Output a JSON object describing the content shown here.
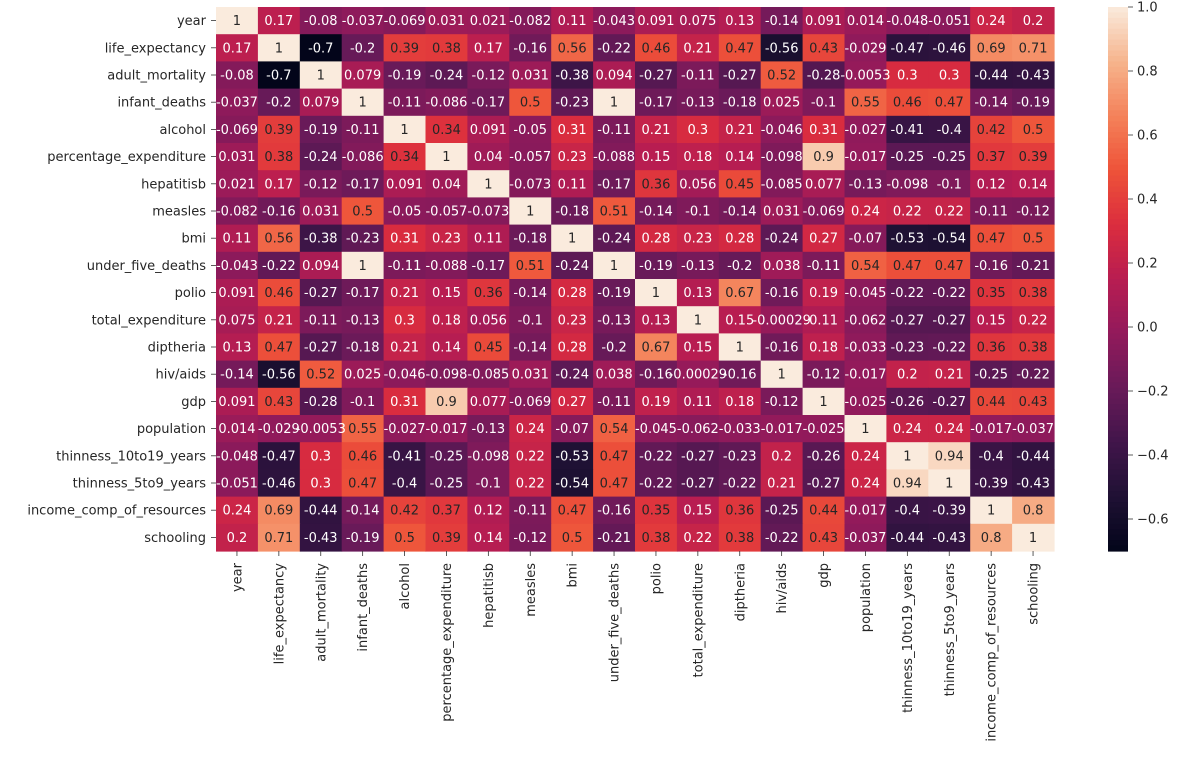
{
  "chart_data": {
    "type": "heatmap",
    "labels": [
      "year",
      "life_expectancy",
      "adult_mortality",
      "infant_deaths",
      "alcohol",
      "percentage_expenditure",
      "hepatitisb",
      "measles",
      "bmi",
      "under_five_deaths",
      "polio",
      "total_expenditure",
      "diptheria",
      "hiv/aids",
      "gdp",
      "population",
      "thinness_10to19_years",
      "thinness_5to9_years",
      "income_comp_of_resources",
      "schooling"
    ],
    "cells": [
      [
        "1",
        "0.17",
        "-0.08",
        "-0.037",
        "-0.069",
        "0.031",
        "0.021",
        "-0.082",
        "0.11",
        "-0.043",
        "0.091",
        "0.075",
        "0.13",
        "-0.14",
        "0.091",
        "0.014",
        "-0.048",
        "-0.051",
        "0.24",
        "0.2"
      ],
      [
        "0.17",
        "1",
        "-0.7",
        "-0.2",
        "0.39",
        "0.38",
        "0.17",
        "-0.16",
        "0.56",
        "-0.22",
        "0.46",
        "0.21",
        "0.47",
        "-0.56",
        "0.43",
        "-0.029",
        "-0.47",
        "-0.46",
        "0.69",
        "0.71"
      ],
      [
        "-0.08",
        "-0.7",
        "1",
        "0.079",
        "-0.19",
        "-0.24",
        "-0.12",
        "0.031",
        "-0.38",
        "0.094",
        "-0.27",
        "-0.11",
        "-0.27",
        "0.52",
        "-0.28",
        "-0.0053",
        "0.3",
        "0.3",
        "-0.44",
        "-0.43"
      ],
      [
        "-0.037",
        "-0.2",
        "0.079",
        "1",
        "-0.11",
        "-0.086",
        "-0.17",
        "0.5",
        "-0.23",
        "1",
        "-0.17",
        "-0.13",
        "-0.18",
        "0.025",
        "-0.1",
        "0.55",
        "0.46",
        "0.47",
        "-0.14",
        "-0.19"
      ],
      [
        "-0.069",
        "0.39",
        "-0.19",
        "-0.11",
        "1",
        "0.34",
        "0.091",
        "-0.05",
        "0.31",
        "-0.11",
        "0.21",
        "0.3",
        "0.21",
        "-0.046",
        "0.31",
        "-0.027",
        "-0.41",
        "-0.4",
        "0.42",
        "0.5"
      ],
      [
        "0.031",
        "0.38",
        "-0.24",
        "-0.086",
        "0.34",
        "1",
        "0.04",
        "-0.057",
        "0.23",
        "-0.088",
        "0.15",
        "0.18",
        "0.14",
        "-0.098",
        "0.9",
        "-0.017",
        "-0.25",
        "-0.25",
        "0.37",
        "0.39"
      ],
      [
        "0.021",
        "0.17",
        "-0.12",
        "-0.17",
        "0.091",
        "0.04",
        "1",
        "-0.073",
        "0.11",
        "-0.17",
        "0.36",
        "0.056",
        "0.45",
        "-0.085",
        "0.077",
        "-0.13",
        "-0.098",
        "-0.1",
        "0.12",
        "0.14"
      ],
      [
        "-0.082",
        "-0.16",
        "0.031",
        "0.5",
        "-0.05",
        "-0.057",
        "-0.073",
        "1",
        "-0.18",
        "0.51",
        "-0.14",
        "-0.1",
        "-0.14",
        "0.031",
        "-0.069",
        "0.24",
        "0.22",
        "0.22",
        "-0.11",
        "-0.12"
      ],
      [
        "0.11",
        "0.56",
        "-0.38",
        "-0.23",
        "0.31",
        "0.23",
        "0.11",
        "-0.18",
        "1",
        "-0.24",
        "0.28",
        "0.23",
        "0.28",
        "-0.24",
        "0.27",
        "-0.07",
        "-0.53",
        "-0.54",
        "0.47",
        "0.5"
      ],
      [
        "-0.043",
        "-0.22",
        "0.094",
        "1",
        "-0.11",
        "-0.088",
        "-0.17",
        "0.51",
        "-0.24",
        "1",
        "-0.19",
        "-0.13",
        "-0.2",
        "0.038",
        "-0.11",
        "0.54",
        "0.47",
        "0.47",
        "-0.16",
        "-0.21"
      ],
      [
        "0.091",
        "0.46",
        "-0.27",
        "-0.17",
        "0.21",
        "0.15",
        "0.36",
        "-0.14",
        "0.28",
        "-0.19",
        "1",
        "0.13",
        "0.67",
        "-0.16",
        "0.19",
        "-0.045",
        "-0.22",
        "-0.22",
        "0.35",
        "0.38"
      ],
      [
        "0.075",
        "0.21",
        "-0.11",
        "-0.13",
        "0.3",
        "0.18",
        "0.056",
        "-0.1",
        "0.23",
        "-0.13",
        "0.13",
        "1",
        "0.15",
        "-0.00029",
        "0.11",
        "-0.062",
        "-0.27",
        "-0.27",
        "0.15",
        "0.22"
      ],
      [
        "0.13",
        "0.47",
        "-0.27",
        "-0.18",
        "0.21",
        "0.14",
        "0.45",
        "-0.14",
        "0.28",
        "-0.2",
        "0.67",
        "0.15",
        "1",
        "-0.16",
        "0.18",
        "-0.033",
        "-0.23",
        "-0.22",
        "0.36",
        "0.38"
      ],
      [
        "-0.14",
        "-0.56",
        "0.52",
        "0.025",
        "-0.046",
        "-0.098",
        "-0.085",
        "0.031",
        "-0.24",
        "0.038",
        "-0.16",
        "-0.00029",
        "-0.16",
        "1",
        "-0.12",
        "-0.017",
        "0.2",
        "0.21",
        "-0.25",
        "-0.22"
      ],
      [
        "0.091",
        "0.43",
        "-0.28",
        "-0.1",
        "0.31",
        "0.9",
        "0.077",
        "-0.069",
        "0.27",
        "-0.11",
        "0.19",
        "0.11",
        "0.18",
        "-0.12",
        "1",
        "-0.025",
        "-0.26",
        "-0.27",
        "0.44",
        "0.43"
      ],
      [
        "0.014",
        "-0.029",
        "-0.0053",
        "0.55",
        "-0.027",
        "-0.017",
        "-0.13",
        "0.24",
        "-0.07",
        "0.54",
        "-0.045",
        "-0.062",
        "-0.033",
        "-0.017",
        "-0.025",
        "1",
        "0.24",
        "0.24",
        "-0.017",
        "-0.037"
      ],
      [
        "-0.048",
        "-0.47",
        "0.3",
        "0.46",
        "-0.41",
        "-0.25",
        "-0.098",
        "0.22",
        "-0.53",
        "0.47",
        "-0.22",
        "-0.27",
        "-0.23",
        "0.2",
        "-0.26",
        "0.24",
        "1",
        "0.94",
        "-0.4",
        "-0.44"
      ],
      [
        "-0.051",
        "-0.46",
        "0.3",
        "0.47",
        "-0.4",
        "-0.25",
        "-0.1",
        "0.22",
        "-0.54",
        "0.47",
        "-0.22",
        "-0.27",
        "-0.22",
        "0.21",
        "-0.27",
        "0.24",
        "0.94",
        "1",
        "-0.39",
        "-0.43"
      ],
      [
        "0.24",
        "0.69",
        "-0.44",
        "-0.14",
        "0.42",
        "0.37",
        "0.12",
        "-0.11",
        "0.47",
        "-0.16",
        "0.35",
        "0.15",
        "0.36",
        "-0.25",
        "0.44",
        "-0.017",
        "-0.4",
        "-0.39",
        "1",
        "0.8"
      ],
      [
        "0.2",
        "0.71",
        "-0.43",
        "-0.19",
        "0.5",
        "0.39",
        "0.14",
        "-0.12",
        "0.5",
        "-0.21",
        "0.38",
        "0.22",
        "0.38",
        "-0.22",
        "0.43",
        "-0.037",
        "-0.44",
        "-0.43",
        "0.8",
        "1"
      ]
    ],
    "colorbar": {
      "vmin": -0.7,
      "vmax": 1.0,
      "ticks": [
        -0.6,
        -0.4,
        -0.2,
        0.0,
        0.2,
        0.4,
        0.6,
        0.8,
        1.0
      ],
      "tick_labels": [
        "−0.6",
        "−0.4",
        "−0.2",
        "0.0",
        "0.2",
        "0.4",
        "0.6",
        "0.8",
        "1.0"
      ]
    },
    "colormap": "rocket",
    "annotation_colors": {
      "dark_text": "#262626",
      "light_text": "#ffffff"
    },
    "title": "",
    "xlabel": "",
    "ylabel": ""
  }
}
